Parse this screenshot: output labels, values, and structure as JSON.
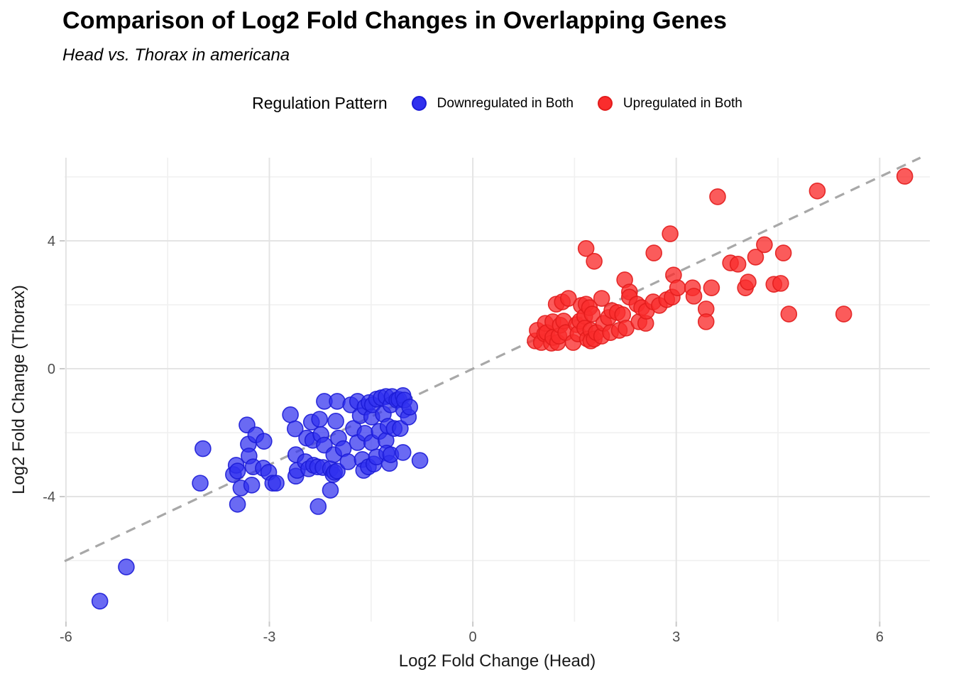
{
  "header": {
    "title": "Comparison of Log2 Fold Changes in Overlapping Genes",
    "subtitle": "Head vs. Thorax in americana"
  },
  "legend": {
    "title": "Regulation Pattern",
    "items": [
      {
        "label": "Downregulated in Both",
        "fill": "#3030ee",
        "stroke": "#1c1cd7"
      },
      {
        "label": "Upregulated in Both",
        "fill": "#fa2d2d",
        "stroke": "#e21c1c"
      }
    ]
  },
  "colors": {
    "grid_major": "#e4e4e4",
    "grid_minor": "#f0f0f0",
    "tick": "#c9c9c9",
    "axis_text": "#4d4d4d",
    "axis_title_text": "#1a1a1a",
    "identity_line": "#a8a8a8"
  },
  "chart_data": {
    "type": "scatter",
    "title": "Comparison of Log2 Fold Changes in Overlapping Genes",
    "subtitle": "Head vs. Thorax in americana",
    "xlabel": "Log2 Fold Change (Head)",
    "ylabel": "Log2 Fold Change (Thorax)",
    "xlim": [
      -6.02,
      6.74
    ],
    "ylim": [
      -7.91,
      6.6
    ],
    "xticks": [
      -6,
      -3,
      0,
      3,
      6
    ],
    "yticks": [
      -4,
      0,
      4
    ],
    "xminor": [
      -4.5,
      -1.5,
      1.5,
      4.5
    ],
    "yminor": [
      -6,
      -2,
      2,
      6
    ],
    "grid": true,
    "legend_position": "top",
    "identity_line": {
      "equation": "y = x",
      "style": "dashed",
      "color": "#a8a8a8"
    },
    "series": [
      {
        "name": "Downregulated in Both",
        "fill": "#3030ee",
        "stroke": "#1c1cd7",
        "fill_opacity": 0.72,
        "points": [
          [
            -5.5,
            -7.27
          ],
          [
            -5.11,
            -6.2
          ],
          [
            -4.02,
            -3.58
          ],
          [
            -3.98,
            -2.5
          ],
          [
            -3.53,
            -3.31
          ],
          [
            -3.49,
            -3.02
          ],
          [
            -3.47,
            -3.2
          ],
          [
            -3.47,
            -4.24
          ],
          [
            -3.42,
            -3.73
          ],
          [
            -3.33,
            -1.76
          ],
          [
            -3.31,
            -2.36
          ],
          [
            -3.3,
            -2.73
          ],
          [
            -3.26,
            -3.64
          ],
          [
            -3.24,
            -3.07
          ],
          [
            -3.2,
            -2.07
          ],
          [
            -3.08,
            -2.27
          ],
          [
            -3.09,
            -3.11
          ],
          [
            -3.01,
            -3.24
          ],
          [
            -2.95,
            -3.58
          ],
          [
            -2.9,
            -3.58
          ],
          [
            -2.69,
            -1.44
          ],
          [
            -2.62,
            -1.88
          ],
          [
            -2.61,
            -3.36
          ],
          [
            -2.61,
            -2.69
          ],
          [
            -2.59,
            -3.18
          ],
          [
            -2.47,
            -2.91
          ],
          [
            -2.45,
            -2.17
          ],
          [
            -2.42,
            -3.13
          ],
          [
            -2.38,
            -1.67
          ],
          [
            -2.36,
            -2.24
          ],
          [
            -2.35,
            -3.02
          ],
          [
            -2.29,
            -3.07
          ],
          [
            -2.28,
            -4.31
          ],
          [
            -2.26,
            -1.58
          ],
          [
            -2.24,
            -2.06
          ],
          [
            -2.21,
            -3.09
          ],
          [
            -2.19,
            -2.39
          ],
          [
            -2.19,
            -1.02
          ],
          [
            -2.1,
            -3.13
          ],
          [
            -2.1,
            -3.8
          ],
          [
            -2.06,
            -3.31
          ],
          [
            -2.05,
            -2.69
          ],
          [
            -2.04,
            -3.24
          ],
          [
            -2.02,
            -1.64
          ],
          [
            -2.0,
            -3.2
          ],
          [
            -2.0,
            -1.02
          ],
          [
            -1.98,
            -2.17
          ],
          [
            -1.91,
            -2.5
          ],
          [
            -1.84,
            -2.91
          ],
          [
            -1.8,
            -1.13
          ],
          [
            -1.76,
            -1.87
          ],
          [
            -1.7,
            -1.02
          ],
          [
            -1.7,
            -2.31
          ],
          [
            -1.66,
            -1.47
          ],
          [
            -1.63,
            -2.84
          ],
          [
            -1.61,
            -3.18
          ],
          [
            -1.59,
            -1.2
          ],
          [
            -1.59,
            -2.02
          ],
          [
            -1.54,
            -3.07
          ],
          [
            -1.53,
            -1.06
          ],
          [
            -1.49,
            -1.51
          ],
          [
            -1.49,
            -2.31
          ],
          [
            -1.48,
            -1.13
          ],
          [
            -1.46,
            -2.98
          ],
          [
            -1.42,
            -0.95
          ],
          [
            -1.42,
            -2.76
          ],
          [
            -1.38,
            -1.96
          ],
          [
            -1.35,
            -0.91
          ],
          [
            -1.32,
            -1.42
          ],
          [
            -1.28,
            -0.87
          ],
          [
            -1.28,
            -2.24
          ],
          [
            -1.27,
            -2.64
          ],
          [
            -1.25,
            -1.8
          ],
          [
            -1.23,
            -2.96
          ],
          [
            -1.21,
            -1.13
          ],
          [
            -1.21,
            -2.69
          ],
          [
            -1.19,
            -0.87
          ],
          [
            -1.16,
            -1.87
          ],
          [
            -1.12,
            -0.98
          ],
          [
            -1.09,
            -0.96
          ],
          [
            -1.07,
            -1.87
          ],
          [
            -1.03,
            -0.84
          ],
          [
            -1.03,
            -2.62
          ],
          [
            -1.02,
            -1.29
          ],
          [
            -1.01,
            -0.98
          ],
          [
            -0.95,
            -1.51
          ],
          [
            -0.93,
            -1.2
          ],
          [
            -0.78,
            -2.87
          ]
        ]
      },
      {
        "name": "Upregulated in Both",
        "fill": "#fa2d2d",
        "stroke": "#e21c1c",
        "fill_opacity": 0.78,
        "points": [
          [
            0.92,
            0.87
          ],
          [
            0.95,
            1.2
          ],
          [
            1.01,
            0.82
          ],
          [
            1.06,
            1.09
          ],
          [
            1.07,
            1.42
          ],
          [
            1.09,
            1.13
          ],
          [
            1.16,
            0.8
          ],
          [
            1.18,
            1.47
          ],
          [
            1.18,
            0.98
          ],
          [
            1.23,
            2.02
          ],
          [
            1.25,
            0.82
          ],
          [
            1.27,
            1.02
          ],
          [
            1.29,
            1.36
          ],
          [
            1.32,
            2.09
          ],
          [
            1.34,
            1.49
          ],
          [
            1.37,
            1.13
          ],
          [
            1.41,
            2.2
          ],
          [
            1.48,
            0.82
          ],
          [
            1.53,
            1.38
          ],
          [
            1.55,
            1.09
          ],
          [
            1.58,
            1.49
          ],
          [
            1.6,
            1.98
          ],
          [
            1.65,
            1.64
          ],
          [
            1.65,
            1.27
          ],
          [
            1.67,
            3.76
          ],
          [
            1.67,
            2.02
          ],
          [
            1.69,
            0.93
          ],
          [
            1.72,
            1.91
          ],
          [
            1.74,
            1.2
          ],
          [
            1.74,
            0.87
          ],
          [
            1.76,
            1.71
          ],
          [
            1.79,
            3.36
          ],
          [
            1.79,
            0.93
          ],
          [
            1.82,
            1.13
          ],
          [
            1.9,
            2.2
          ],
          [
            1.9,
            1.02
          ],
          [
            1.93,
            1.42
          ],
          [
            2.0,
            1.6
          ],
          [
            2.03,
            1.13
          ],
          [
            2.05,
            1.82
          ],
          [
            2.13,
            1.76
          ],
          [
            2.16,
            1.2
          ],
          [
            2.21,
            1.69
          ],
          [
            2.24,
            2.78
          ],
          [
            2.26,
            1.27
          ],
          [
            2.31,
            2.4
          ],
          [
            2.31,
            2.24
          ],
          [
            2.42,
            2.02
          ],
          [
            2.45,
            1.47
          ],
          [
            2.49,
            1.91
          ],
          [
            2.55,
            1.42
          ],
          [
            2.56,
            1.8
          ],
          [
            2.66,
            2.09
          ],
          [
            2.67,
            3.62
          ],
          [
            2.75,
            1.98
          ],
          [
            2.86,
            2.16
          ],
          [
            2.91,
            4.22
          ],
          [
            2.94,
            2.24
          ],
          [
            2.96,
            2.93
          ],
          [
            3.02,
            2.53
          ],
          [
            3.24,
            2.53
          ],
          [
            3.26,
            2.27
          ],
          [
            3.44,
            1.87
          ],
          [
            3.44,
            1.47
          ],
          [
            3.52,
            2.53
          ],
          [
            3.61,
            5.38
          ],
          [
            3.8,
            3.31
          ],
          [
            3.91,
            3.27
          ],
          [
            4.02,
            2.53
          ],
          [
            4.06,
            2.71
          ],
          [
            4.17,
            3.49
          ],
          [
            4.3,
            3.88
          ],
          [
            4.44,
            2.64
          ],
          [
            4.54,
            2.67
          ],
          [
            4.58,
            3.62
          ],
          [
            4.66,
            1.71
          ],
          [
            5.08,
            5.56
          ],
          [
            5.47,
            1.71
          ],
          [
            6.37,
            6.02
          ]
        ]
      }
    ]
  }
}
